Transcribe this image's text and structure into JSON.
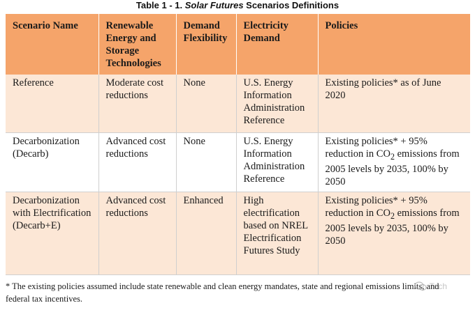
{
  "caption": {
    "prefix": "Table 1 - 1. ",
    "emphasis": "Solar Futures",
    "suffix": " Scenarios Definitions"
  },
  "table": {
    "headers": [
      "Scenario Name",
      "Renewable Energy and Storage Technologies",
      "Demand Flexibility",
      "Electricity Demand",
      "Policies"
    ],
    "rows": [
      {
        "scenario": "Reference",
        "renewable": "Moderate cost reductions",
        "flexibility": "None",
        "demand": "U.S. Energy Information Administration Reference",
        "policies": "Existing policies* as of June 2020"
      },
      {
        "scenario": "Decarbonization (Decarb)",
        "renewable": "Advanced cost reductions",
        "flexibility": "None",
        "demand": "U.S. Energy Information Administration Reference",
        "policies_before": "Existing policies* + 95% reduction in CO",
        "policies_sub": "2",
        "policies_after": " emissions from 2005 levels by 2035, 100% by 2050"
      },
      {
        "scenario": "Decarbonization with Electrification (Decarb+E)",
        "renewable": "Advanced cost reductions",
        "flexibility": "Enhanced",
        "demand": "High electrification based on NREL Electrification Futures Study",
        "policies_before": "Existing policies* + 95% reduction in CO",
        "policies_sub": "2",
        "policies_after": " emissions from 2005 levels by 2035, 100% by 2050"
      }
    ]
  },
  "footnote": "* The existing policies assumed include state renewable and clean energy mandates, state and regional emissions limits, and federal tax incentives.",
  "watermark": {
    "text": "Tech",
    "icon": "wechat-icon"
  }
}
